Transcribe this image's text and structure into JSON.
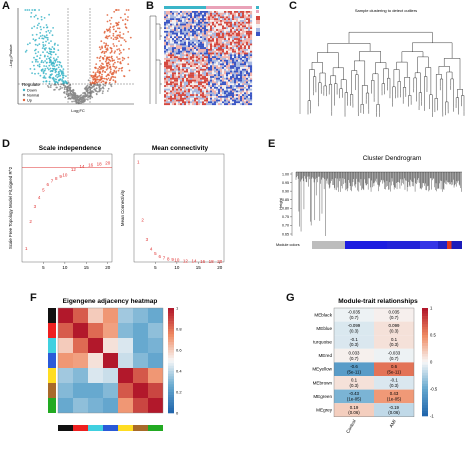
{
  "figure": {
    "panel_letters": [
      "A",
      "B",
      "C",
      "D",
      "E",
      "F",
      "G"
    ]
  },
  "panel_a": {
    "xlabel": "Log₂FC",
    "ylabel": "-Log₁₀Pvalue",
    "legend_title": "Regulate",
    "legend": [
      {
        "name": "Down",
        "color": "#3bb5c8"
      },
      {
        "name": "Normal",
        "color": "#8a8a8a"
      },
      {
        "name": "Up",
        "color": "#e0623a"
      }
    ]
  },
  "panel_b": {
    "legend_colors": [
      "#3bb5c8",
      "#e9a2b8"
    ],
    "cell_colors": [
      "#d4483f",
      "#f0b2ab",
      "#f4f0f0",
      "#a6b7e0",
      "#3b56c4"
    ]
  },
  "panel_c": {
    "title": "Sample clustering to detect outliers"
  },
  "panel_d_left": {
    "chart_data": {
      "type": "scatter",
      "title": "Scale independence",
      "xlabel": "Soft Threshold (power)",
      "ylabel": "Scale Free Topology Model Fit,signed R^2",
      "x": [
        1,
        2,
        3,
        4,
        5,
        6,
        7,
        8,
        9,
        10,
        12,
        14,
        16,
        18,
        20
      ],
      "labels": [
        "1",
        "2",
        "3",
        "4",
        "5",
        "6",
        "7",
        "8",
        "9",
        "10",
        "12",
        "14",
        "16",
        "18",
        "20"
      ],
      "y": [
        -0.05,
        0.25,
        0.42,
        0.52,
        0.6,
        0.66,
        0.7,
        0.73,
        0.75,
        0.77,
        0.83,
        0.86,
        0.88,
        0.89,
        0.9
      ],
      "xticks": [
        "5",
        "10",
        "15",
        "20"
      ],
      "ylim": [
        -0.2,
        1.0
      ],
      "hline": 0.85,
      "color": "#e03030"
    }
  },
  "panel_d_right": {
    "chart_data": {
      "type": "scatter",
      "title": "Mean connectivity",
      "xlabel": "Soft Threshold (power)",
      "ylabel": "Mean Connectivity",
      "x": [
        1,
        2,
        3,
        4,
        5,
        6,
        7,
        8,
        9,
        10,
        12,
        14,
        16,
        18,
        20
      ],
      "labels": [
        "1",
        "2",
        "3",
        "4",
        "5",
        "6",
        "7",
        "8",
        "9",
        "10",
        "12",
        "14",
        "16",
        "18",
        "20"
      ],
      "y": [
        2500,
        1050,
        560,
        330,
        210,
        140,
        100,
        75,
        60,
        48,
        32,
        24,
        18,
        14,
        11
      ],
      "xticks": [
        "5",
        "10",
        "15",
        "20"
      ],
      "ylim": [
        0,
        2700
      ],
      "color": "#e03030"
    }
  },
  "panel_e": {
    "title": "Cluster Dendrogram",
    "ylabel": "Height",
    "yticks": [
      "1.00",
      "0.95",
      "0.90",
      "0.85",
      "0.80",
      "0.75",
      "0.70",
      "0.65"
    ],
    "module_label": "Module colors",
    "module_bar": [
      {
        "color": "#bdbdbd",
        "w": 0.22
      },
      {
        "color": "#1d1de0",
        "w": 0.28
      },
      {
        "color": "#2424d8",
        "w": 0.22
      },
      {
        "color": "#3535e6",
        "w": 0.12
      },
      {
        "color": "#2222c4",
        "w": 0.06
      },
      {
        "color": "#e0391f",
        "w": 0.03
      },
      {
        "color": "#1c1cba",
        "w": 0.07
      }
    ]
  },
  "panel_f": {
    "title": "Eigengene adjacency heatmap",
    "scale_ticks": [
      "1",
      "0.8",
      "0.6",
      "0.4",
      "0.2",
      "0"
    ],
    "module_colors": [
      "#111111",
      "#ee2020",
      "#40d0e0",
      "#2a5ad8",
      "#ffdd22",
      "#a86a2a",
      "#22aa22"
    ],
    "bottom_colors": [
      "#111111",
      "#ee2020",
      "#40d0e0",
      "#2a5ad8",
      "#ffdd22",
      "#a86a2a",
      "#22aa22"
    ],
    "matrix": [
      [
        1.0,
        0.85,
        0.6,
        0.72,
        0.35,
        0.3,
        0.25
      ],
      [
        0.85,
        1.0,
        0.82,
        0.7,
        0.3,
        0.25,
        0.32
      ],
      [
        0.6,
        0.82,
        1.0,
        0.55,
        0.45,
        0.25,
        0.28
      ],
      [
        0.72,
        0.7,
        0.55,
        1.0,
        0.42,
        0.3,
        0.24
      ],
      [
        0.35,
        0.3,
        0.45,
        0.42,
        1.0,
        0.86,
        0.72
      ],
      [
        0.3,
        0.25,
        0.25,
        0.3,
        0.86,
        1.0,
        0.9
      ],
      [
        0.25,
        0.32,
        0.28,
        0.24,
        0.72,
        0.9,
        1.0
      ]
    ]
  },
  "panel_g": {
    "title": "Module-trait relationships",
    "columns": [
      "Control",
      "AMI"
    ],
    "scale_ticks": [
      "1",
      "0.5",
      "0",
      "-0.5",
      "-1"
    ],
    "rows": [
      {
        "name": "MEblack",
        "cells": [
          {
            "r": "-0.035",
            "p": "(0.7)",
            "v": -0.035
          },
          {
            "r": "0.035",
            "p": "(0.7)",
            "v": 0.035
          }
        ]
      },
      {
        "name": "MEblue",
        "cells": [
          {
            "r": "-0.099",
            "p": "(0.3)",
            "v": -0.099
          },
          {
            "r": "0.099",
            "p": "(0.3)",
            "v": 0.099
          }
        ]
      },
      {
        "name": "turquoise",
        "cells": [
          {
            "r": "-0.1",
            "p": "(0.3)",
            "v": -0.1
          },
          {
            "r": "0.1",
            "p": "(0.3)",
            "v": 0.1
          }
        ]
      },
      {
        "name": "MEred",
        "cells": [
          {
            "r": "0.033",
            "p": "(0.7)",
            "v": 0.033
          },
          {
            "r": "-0.033",
            "p": "(0.7)",
            "v": -0.033
          }
        ]
      },
      {
        "name": "MEyellow",
        "cells": [
          {
            "r": "-0.6",
            "p": "(5e-11)",
            "v": -0.6
          },
          {
            "r": "0.6",
            "p": "(5e-11)",
            "v": 0.6
          }
        ]
      },
      {
        "name": "MEbrown",
        "cells": [
          {
            "r": "0.1",
            "p": "(0.3)",
            "v": 0.1
          },
          {
            "r": "-0.1",
            "p": "(0.3)",
            "v": -0.1
          }
        ]
      },
      {
        "name": "MEgreen",
        "cells": [
          {
            "r": "-0.43",
            "p": "(1e-05)",
            "v": -0.43
          },
          {
            "r": "0.43",
            "p": "(1e-05)",
            "v": 0.43
          }
        ]
      },
      {
        "name": "MEgrey",
        "cells": [
          {
            "r": "0.19",
            "p": "(0.06)",
            "v": 0.19
          },
          {
            "r": "-0.19",
            "p": "(0.06)",
            "v": -0.19
          }
        ]
      }
    ]
  }
}
